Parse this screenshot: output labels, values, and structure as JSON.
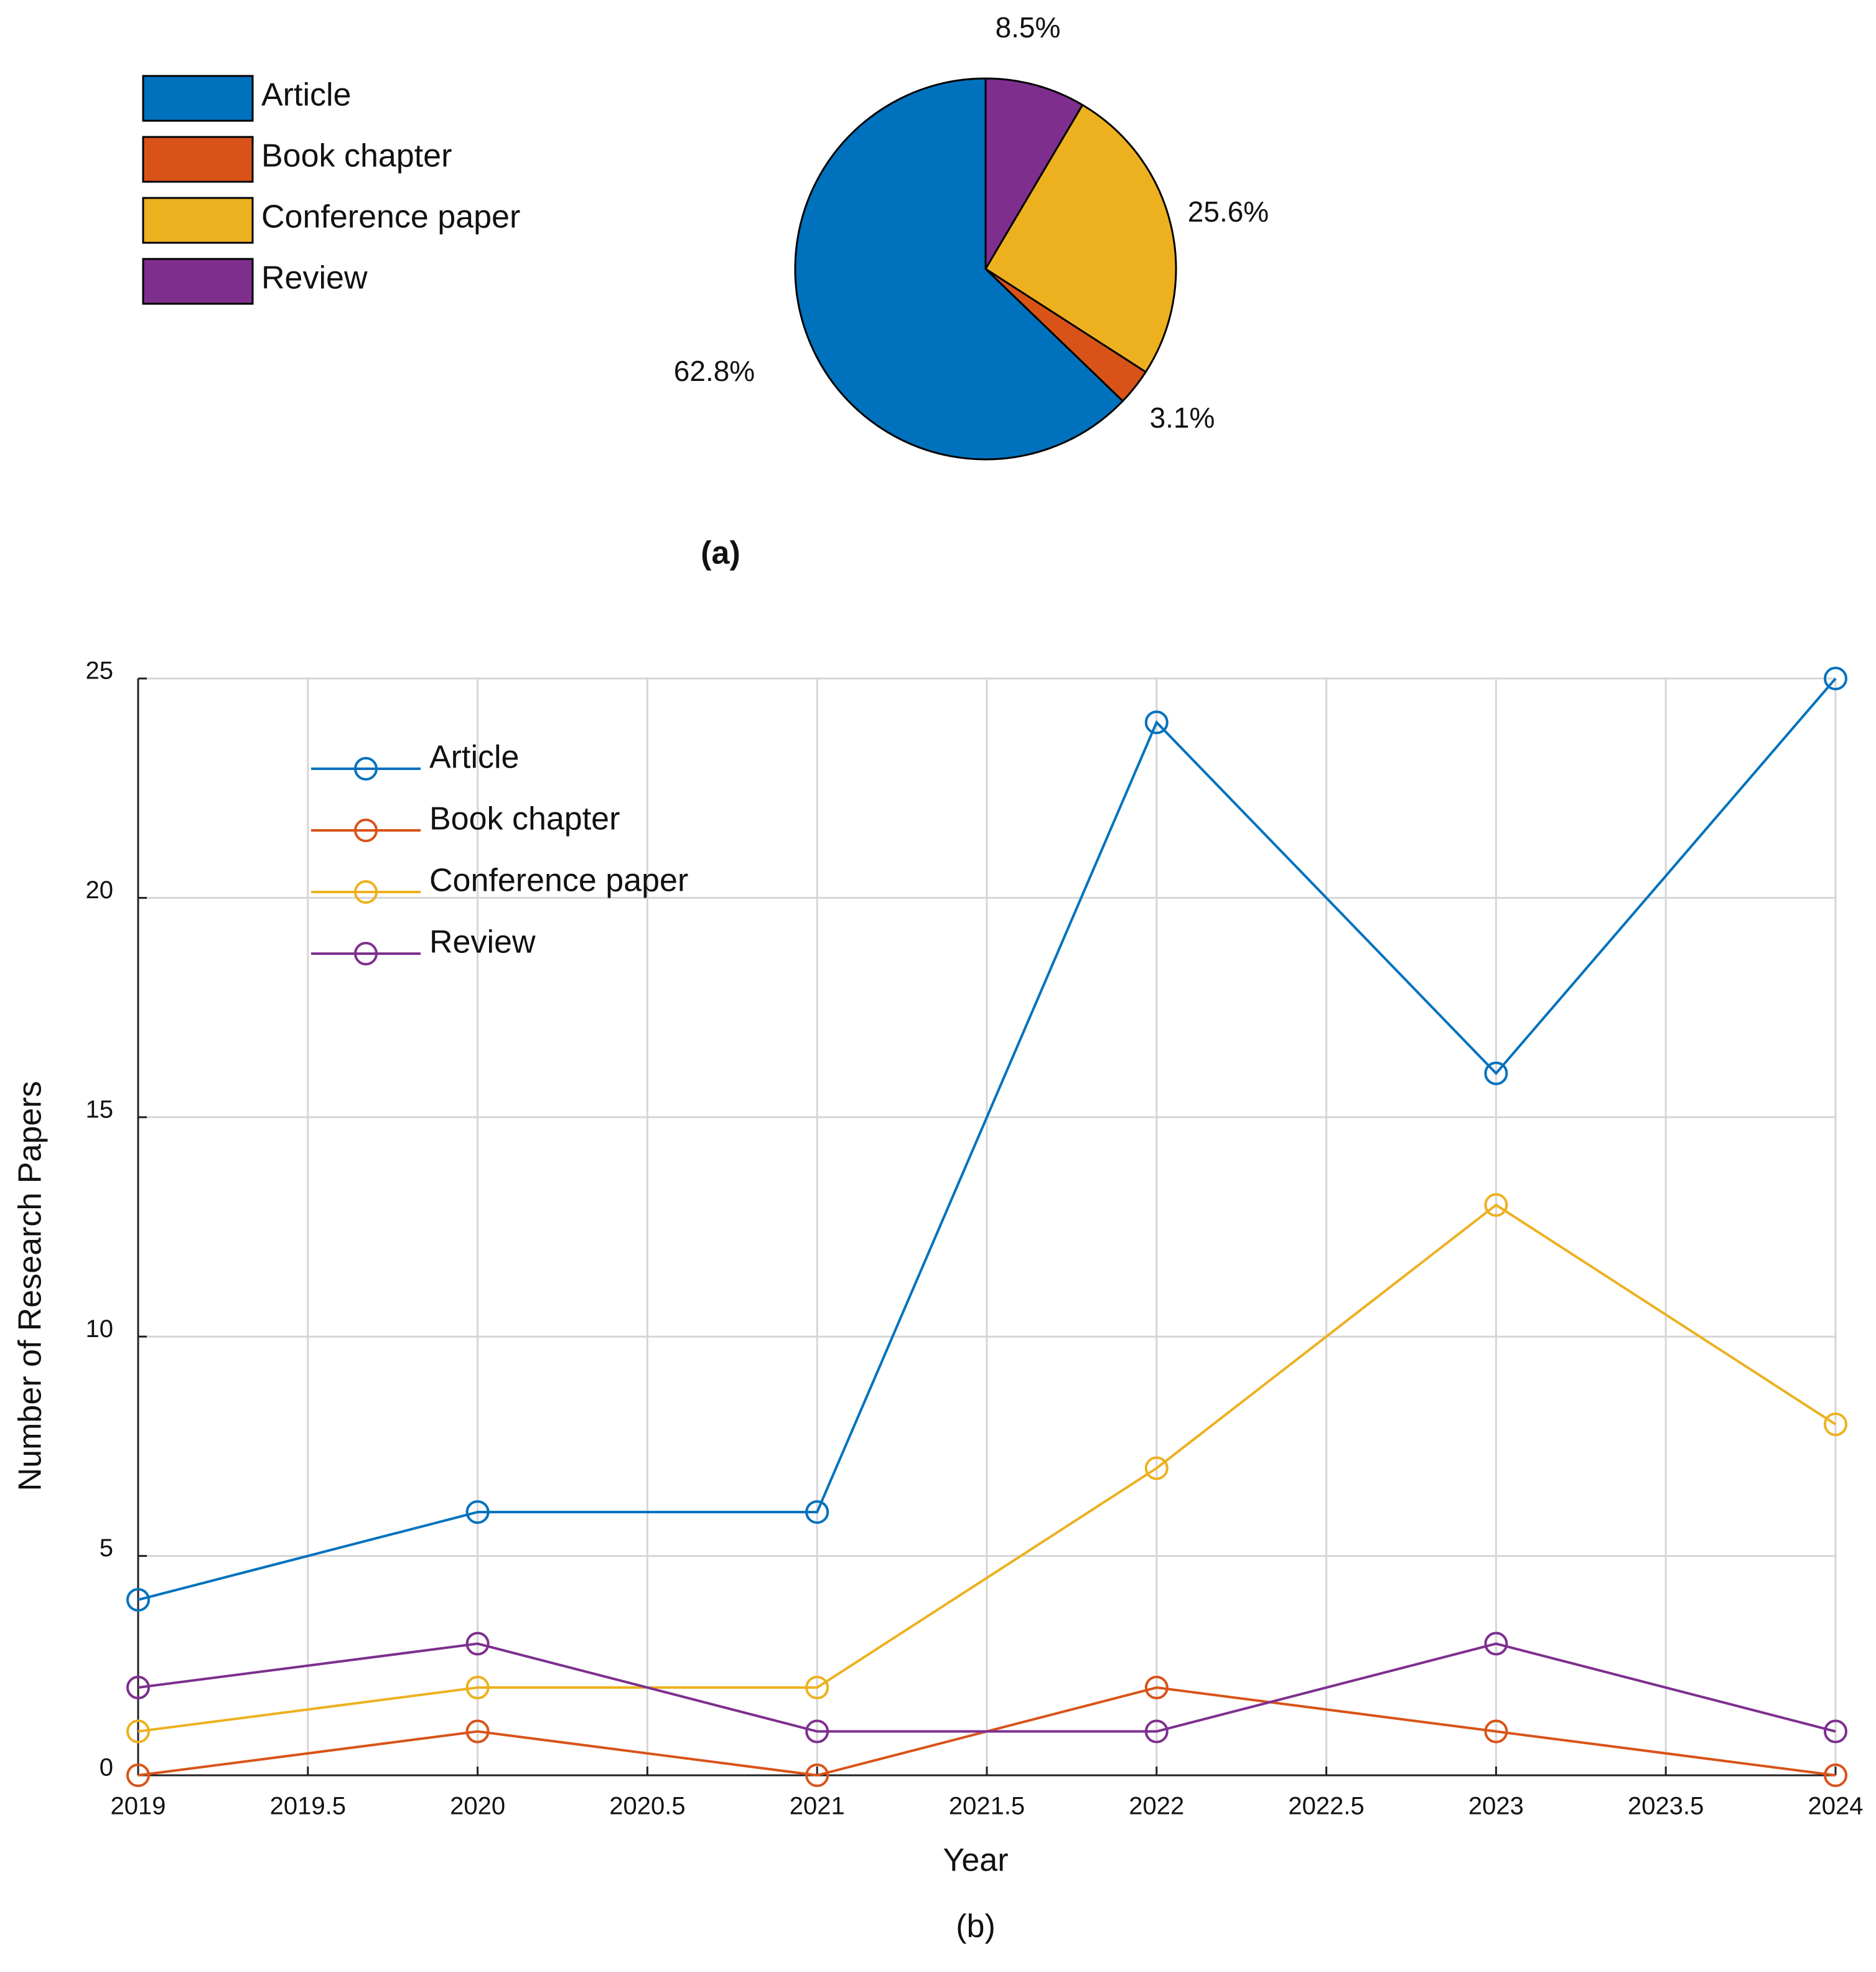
{
  "colors": {
    "Article": "#0072BD",
    "Book chapter": "#D95319",
    "Conference paper": "#EDB120",
    "Review": "#7E2F8E"
  },
  "chart_data": [
    {
      "type": "pie",
      "categories": [
        "Article",
        "Book chapter",
        "Conference paper",
        "Review"
      ],
      "values": [
        62.8,
        3.1,
        25.6,
        8.5
      ],
      "labels": [
        "62.8%",
        "3.1%",
        "25.6%",
        "8.5%"
      ],
      "legend": [
        "Article",
        "Book chapter",
        "Conference paper",
        "Review"
      ],
      "legend_position": "top-left",
      "caption": "(a)"
    },
    {
      "type": "line",
      "x": [
        2019,
        2020,
        2021,
        2022,
        2023,
        2024
      ],
      "series": [
        {
          "name": "Article",
          "values": [
            4,
            6,
            6,
            24,
            16,
            25
          ]
        },
        {
          "name": "Book chapter",
          "values": [
            0,
            1,
            0,
            2,
            1,
            0
          ]
        },
        {
          "name": "Conference paper",
          "values": [
            1,
            2,
            2,
            7,
            13,
            8
          ]
        },
        {
          "name": "Review",
          "values": [
            2,
            3,
            1,
            1,
            3,
            1
          ]
        }
      ],
      "xlabel": "Year",
      "ylabel": "Number of Research Papers",
      "xlim": [
        2019,
        2024
      ],
      "ylim": [
        0,
        25
      ],
      "xticks": [
        "2019",
        "2019.5",
        "2020",
        "2020.5",
        "2021",
        "2021.5",
        "2022",
        "2022.5",
        "2023",
        "2023.5",
        "2024"
      ],
      "yticks": [
        "0",
        "5",
        "10",
        "15",
        "20",
        "25"
      ],
      "grid": true,
      "marker": "circle",
      "legend": [
        "Article",
        "Book chapter",
        "Conference paper",
        "Review"
      ],
      "legend_position": "top-left",
      "caption": "(b)"
    }
  ]
}
